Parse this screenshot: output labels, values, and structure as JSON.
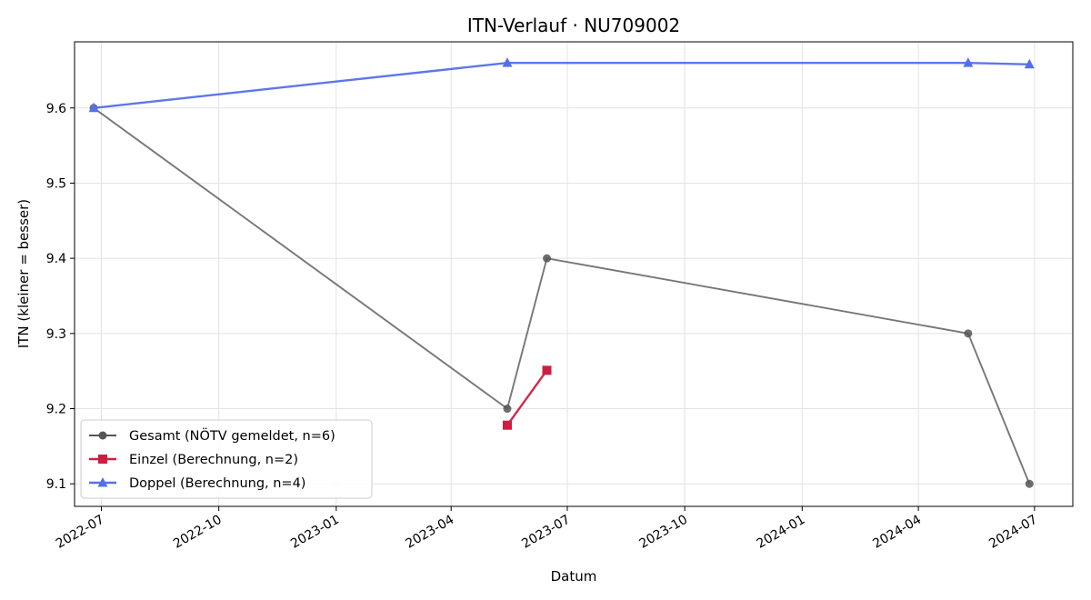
{
  "chart_data": {
    "type": "line",
    "title": "ITN-Verlauf · NU709002",
    "xlabel": "Datum",
    "ylabel": "ITN  (kleiner = besser)",
    "x_ticks": [
      "2022-07",
      "2022-10",
      "2023-01",
      "2023-04",
      "2023-07",
      "2023-10",
      "2024-01",
      "2024-04",
      "2024-07"
    ],
    "y_ticks": [
      "9.1",
      "9.2",
      "9.3",
      "9.4",
      "9.5",
      "9.6"
    ],
    "xlim": [
      "2022-06-10",
      "2024-07-31"
    ],
    "ylim": [
      9.07,
      9.688
    ],
    "grid": true,
    "legend_position": "lower-left",
    "series": [
      {
        "name": "Gesamt (NÖTV gemeldet, n=6)",
        "color": "#555555",
        "marker": "circle",
        "x": [
          "2022-06-25",
          "2023-05-15",
          "2023-06-15",
          "2024-05-10",
          "2024-06-27"
        ],
        "y": [
          9.6,
          9.2,
          9.4,
          9.3,
          9.1
        ]
      },
      {
        "name": "Einzel (Berechnung, n=2)",
        "color": "#cc1f3f",
        "marker": "square",
        "x": [
          "2023-05-15",
          "2023-06-15"
        ],
        "y": [
          9.178,
          9.251
        ]
      },
      {
        "name": "Doppel (Berechnung, n=4)",
        "color": "#5470e8",
        "marker": "triangle",
        "x": [
          "2022-06-25",
          "2023-05-15",
          "2024-05-10",
          "2024-06-27"
        ],
        "y": [
          9.6,
          9.66,
          9.66,
          9.658
        ]
      }
    ]
  }
}
